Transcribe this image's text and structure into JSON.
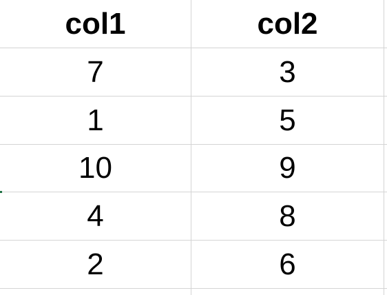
{
  "table": {
    "headers": [
      "col1",
      "col2"
    ],
    "rows": [
      [
        "7",
        "3"
      ],
      [
        "1",
        "5"
      ],
      [
        "10",
        "9"
      ],
      [
        "4",
        "8"
      ],
      [
        "2",
        "6"
      ]
    ]
  },
  "colors": {
    "gridline": "#d4d4d4",
    "text": "#000000",
    "selection_accent": "#217346"
  }
}
